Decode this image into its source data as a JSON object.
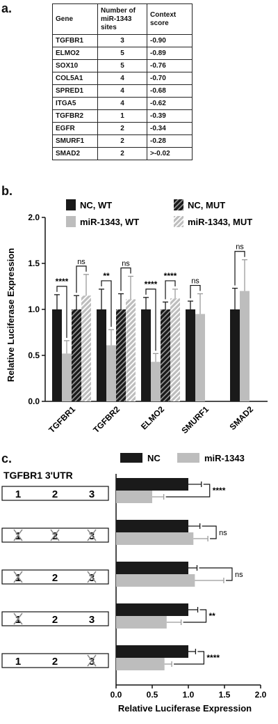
{
  "panel_labels": {
    "a": "a.",
    "b": "b.",
    "c": "c."
  },
  "table": {
    "headers": [
      "Gene",
      "Number of miR-1343 sites",
      "Context score"
    ],
    "rows": [
      [
        "TGFBR1",
        "3",
        "-0.90"
      ],
      [
        "ELMO2",
        "5",
        "-0.89"
      ],
      [
        "SOX10",
        "5",
        "-0.76"
      ],
      [
        "COL5A1",
        "4",
        "-0.70"
      ],
      [
        "SPRED1",
        "4",
        "-0.68"
      ],
      [
        "ITGA5",
        "4",
        "-0.62"
      ],
      [
        "TGFBR2",
        "1",
        "-0.39"
      ],
      [
        "EGFR",
        "2",
        "-0.34"
      ],
      [
        "SMURF1",
        "2",
        "-0.28"
      ],
      [
        "SMAD2",
        "2",
        ">-0.02"
      ]
    ]
  },
  "chart_data": [
    {
      "type": "bar",
      "ylabel": "Relative Luciferase Expression",
      "ylim": [
        0,
        2.0
      ],
      "yticks": [
        "0.0",
        "0.5",
        "1.0",
        "1.5",
        "2.0"
      ],
      "categories": [
        "TGFBR1",
        "TGFBR2",
        "ELMO2",
        "SMURF1",
        "SMAD2"
      ],
      "legend_position": "top",
      "series": [
        {
          "name": "NC, WT",
          "values": [
            1.0,
            1.0,
            1.0,
            1.0,
            1.0
          ],
          "errors": [
            0.16,
            0.22,
            0.13,
            0.09,
            0.23
          ],
          "color": "#1a1a1a",
          "pattern": "solid"
        },
        {
          "name": "miR-1343, WT",
          "values": [
            0.52,
            0.61,
            0.43,
            0.95,
            1.2
          ],
          "errors": [
            0.14,
            0.17,
            0.09,
            0.22,
            0.34
          ],
          "color": "#bdbdbd",
          "pattern": "solid"
        },
        {
          "name": "NC, MUT",
          "values": [
            1.0,
            1.0,
            1.0,
            null,
            null
          ],
          "errors": [
            0.15,
            0.17,
            0.08,
            null,
            null
          ],
          "color": "#1a1a1a",
          "pattern": "hatch"
        },
        {
          "name": "miR-1343, MUT",
          "values": [
            1.15,
            1.11,
            1.12,
            null,
            null
          ],
          "errors": [
            0.23,
            0.25,
            0.1,
            null,
            null
          ],
          "color": "#bdbdbd",
          "pattern": "hatch"
        }
      ],
      "significance": [
        {
          "category": 0,
          "pair": "wt",
          "label": "****"
        },
        {
          "category": 0,
          "pair": "mut",
          "label": "ns"
        },
        {
          "category": 1,
          "pair": "wt",
          "label": "**"
        },
        {
          "category": 1,
          "pair": "mut",
          "label": "ns"
        },
        {
          "category": 2,
          "pair": "wt",
          "label": "****"
        },
        {
          "category": 2,
          "pair": "mut",
          "label": "****"
        },
        {
          "category": 3,
          "pair": "wt",
          "label": "ns"
        },
        {
          "category": 4,
          "pair": "wt",
          "label": "ns"
        }
      ]
    },
    {
      "type": "bar",
      "orientation": "horizontal",
      "title": "TGFBR1 3'UTR",
      "xlabel": "Relative Luciferase Expression",
      "xlim": [
        0,
        2.0
      ],
      "xticks": [
        "0.0",
        "0.5",
        "1.0",
        "1.5",
        "2.0"
      ],
      "legend_position": "top",
      "constructs": [
        {
          "sites": [
            "1",
            "2",
            "3"
          ],
          "mutated": [
            false,
            false,
            false
          ]
        },
        {
          "sites": [
            "1",
            "2",
            "3"
          ],
          "mutated": [
            true,
            true,
            true
          ]
        },
        {
          "sites": [
            "1",
            "2",
            "3"
          ],
          "mutated": [
            true,
            false,
            true
          ]
        },
        {
          "sites": [
            "1",
            "2",
            "3"
          ],
          "mutated": [
            true,
            false,
            false
          ]
        },
        {
          "sites": [
            "1",
            "2",
            "3"
          ],
          "mutated": [
            false,
            false,
            true
          ]
        }
      ],
      "series": [
        {
          "name": "NC",
          "values": [
            1.0,
            1.0,
            1.0,
            1.0,
            1.0
          ],
          "errors": [
            0.18,
            0.16,
            0.12,
            0.13,
            0.1
          ],
          "color": "#1a1a1a"
        },
        {
          "name": "miR-1343",
          "values": [
            0.5,
            1.07,
            1.09,
            0.7,
            0.67
          ],
          "errors": [
            0.16,
            0.2,
            0.4,
            0.2,
            0.1
          ],
          "color": "#bdbdbd"
        }
      ],
      "significance": [
        "****",
        "ns",
        "ns",
        "**",
        "****"
      ]
    }
  ]
}
